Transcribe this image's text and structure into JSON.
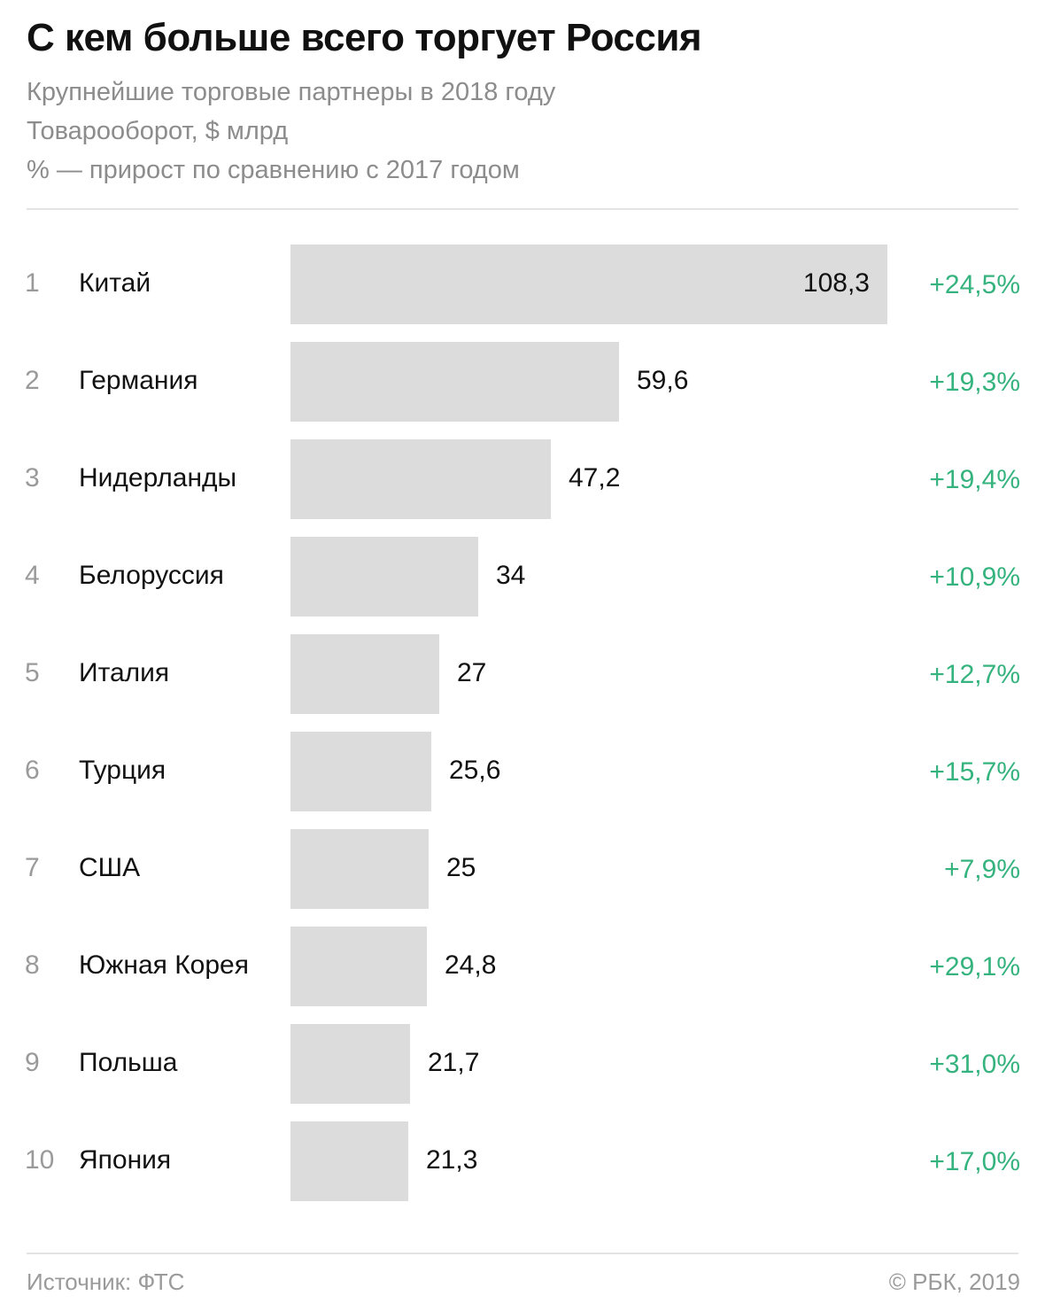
{
  "header": {
    "title": "С кем больше всего торгует Россия",
    "subtitle_lines": [
      "Крупнейшие торговые партнеры в 2018 году",
      "Товарооборот, $ млрд",
      "% — прирост по сравнению с 2017 годом"
    ]
  },
  "chart_data": {
    "type": "bar",
    "orientation": "horizontal",
    "title": "С кем больше всего торгует Россия",
    "ranks": [
      "1",
      "2",
      "3",
      "4",
      "5",
      "6",
      "7",
      "8",
      "9",
      "10"
    ],
    "categories": [
      "Китай",
      "Германия",
      "Нидерланды",
      "Белоруссия",
      "Италия",
      "Турция",
      "США",
      "Южная Корея",
      "Польша",
      "Япония"
    ],
    "values": [
      108.3,
      59.6,
      47.2,
      34,
      27,
      25.6,
      25,
      24.8,
      21.7,
      21.3
    ],
    "value_labels": [
      "108,3",
      "59,6",
      "47,2",
      "34",
      "27",
      "25,6",
      "25",
      "24,8",
      "21,7",
      "21,3"
    ],
    "growth_labels": [
      "+24,5%",
      "+19,3%",
      "+19,4%",
      "+10,9%",
      "+12,7%",
      "+15,7%",
      "+7,9%",
      "+29,1%",
      "+31,0%",
      "+17,0%"
    ],
    "xlim": [
      0,
      108.3
    ],
    "grid": false,
    "legend": "none",
    "colors": {
      "bar": "#dcdcdc",
      "growth": "#35b37e",
      "rank": "#9a9a9a"
    }
  },
  "footer": {
    "source": "Источник: ФТС",
    "copyright": "© РБК, 2019"
  }
}
